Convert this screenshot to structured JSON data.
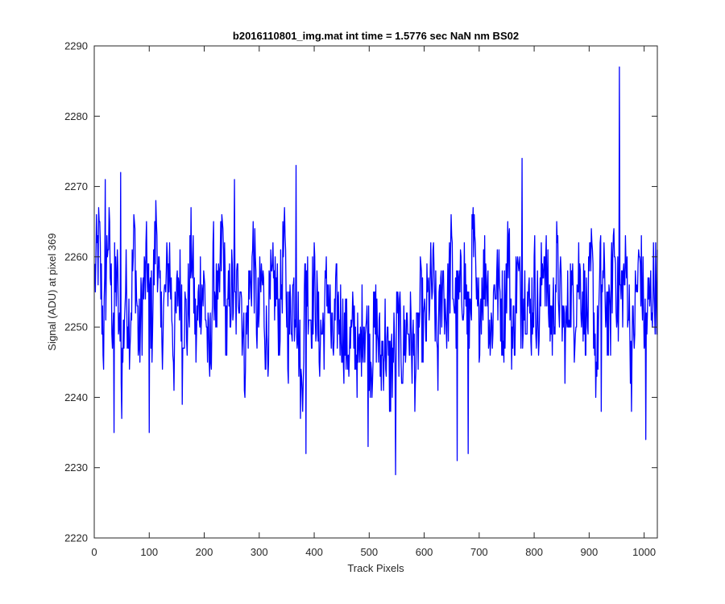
{
  "chart_data": {
    "type": "line",
    "title": "b2016110801_img.mat int time = 1.5776 sec  NaN nm BS02",
    "xlabel": "Track Pixels",
    "ylabel": "Signal (ADU) at pixel 369",
    "xlim": [
      0,
      1024
    ],
    "ylim": [
      2220,
      2290
    ],
    "xticks": [
      0,
      100,
      200,
      300,
      400,
      500,
      600,
      700,
      800,
      900,
      1000
    ],
    "yticks": [
      2220,
      2230,
      2240,
      2250,
      2260,
      2270,
      2280,
      2290
    ],
    "grid": false,
    "legend": "none",
    "line_color": "#0000ff",
    "series": [
      {
        "x_start": 1,
        "x_step": 8,
        "values": [
          2257,
          2262,
          2248,
          2264,
          2252,
          2258,
          2241,
          2256,
          2250,
          2263,
          2247,
          2255,
          2259,
          2251,
          2266,
          2249,
          2254,
          2260,
          2246,
          2257,
          2253,
          2250,
          2262,
          2248,
          2256,
          2255,
          2243,
          2258,
          2251,
          2264,
          2249,
          2256,
          2252,
          2259,
          2245,
          2254,
          2261,
          2250,
          2257,
          2248,
          2254,
          2256,
          2251,
          2262,
          2249,
          2255,
          2253,
          2240,
          2259,
          2252,
          2256,
          2248,
          2250,
          2257,
          2246,
          2253,
          2251,
          2248,
          2247,
          2250,
          2244,
          2252,
          2249,
          2246,
          2251,
          2245,
          2249,
          2243,
          2247,
          2250,
          2246,
          2251,
          2248,
          2244,
          2253,
          2249,
          2255,
          2256,
          2246,
          2258,
          2251,
          2260,
          2252,
          2254,
          2258,
          2249,
          2263,
          2250,
          2256,
          2259,
          2248,
          2257,
          2255,
          2251,
          2262,
          2247,
          2258,
          2253,
          2256,
          2251,
          2257,
          2249,
          2262,
          2254,
          2250,
          2259,
          2253,
          2248,
          2256,
          2252,
          2258,
          2254,
          2251,
          2259,
          2244,
          2257,
          2255,
          2249,
          2263,
          2252,
          2256,
          2258,
          2245,
          2254,
          2260,
          2250,
          2253,
          2256
        ]
      }
    ],
    "spikes": [
      {
        "x": 20,
        "y": 2271
      },
      {
        "x": 36,
        "y": 2235
      },
      {
        "x": 48,
        "y": 2272
      },
      {
        "x": 100,
        "y": 2235
      },
      {
        "x": 160,
        "y": 2239
      },
      {
        "x": 255,
        "y": 2271
      },
      {
        "x": 367,
        "y": 2273
      },
      {
        "x": 385,
        "y": 2232
      },
      {
        "x": 498,
        "y": 2233
      },
      {
        "x": 548,
        "y": 2229
      },
      {
        "x": 660,
        "y": 2231
      },
      {
        "x": 680,
        "y": 2232
      },
      {
        "x": 778,
        "y": 2274
      },
      {
        "x": 922,
        "y": 2238
      },
      {
        "x": 955,
        "y": 2287
      },
      {
        "x": 1003,
        "y": 2234
      }
    ]
  }
}
